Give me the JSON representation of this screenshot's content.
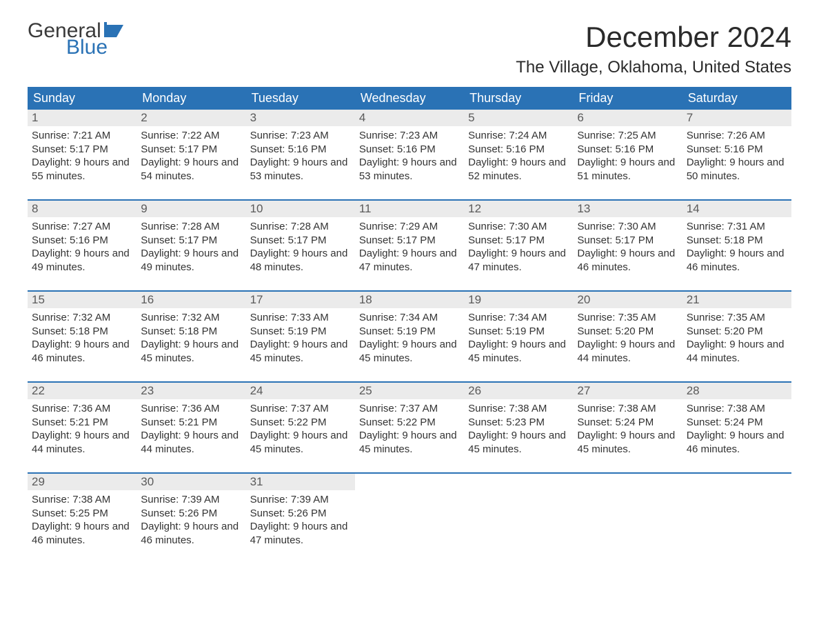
{
  "logo": {
    "word1": "General",
    "word2": "Blue",
    "flag_color": "#2a72b5"
  },
  "title": "December 2024",
  "location": "The Village, Oklahoma, United States",
  "colors": {
    "header_bg": "#2a72b5",
    "header_text": "#ffffff",
    "daynum_bg": "#ebebeb",
    "daynum_text": "#5a5a5a",
    "body_text": "#333333",
    "rule": "#2a72b5",
    "page_bg": "#ffffff"
  },
  "typography": {
    "title_fontsize": 42,
    "location_fontsize": 24,
    "dayheader_fontsize": 18,
    "daynum_fontsize": 17,
    "body_fontsize": 15
  },
  "day_headers": [
    "Sunday",
    "Monday",
    "Tuesday",
    "Wednesday",
    "Thursday",
    "Friday",
    "Saturday"
  ],
  "weeks": [
    [
      {
        "n": "1",
        "sunrise": "7:21 AM",
        "sunset": "5:17 PM",
        "daylight": "9 hours and 55 minutes."
      },
      {
        "n": "2",
        "sunrise": "7:22 AM",
        "sunset": "5:17 PM",
        "daylight": "9 hours and 54 minutes."
      },
      {
        "n": "3",
        "sunrise": "7:23 AM",
        "sunset": "5:16 PM",
        "daylight": "9 hours and 53 minutes."
      },
      {
        "n": "4",
        "sunrise": "7:23 AM",
        "sunset": "5:16 PM",
        "daylight": "9 hours and 53 minutes."
      },
      {
        "n": "5",
        "sunrise": "7:24 AM",
        "sunset": "5:16 PM",
        "daylight": "9 hours and 52 minutes."
      },
      {
        "n": "6",
        "sunrise": "7:25 AM",
        "sunset": "5:16 PM",
        "daylight": "9 hours and 51 minutes."
      },
      {
        "n": "7",
        "sunrise": "7:26 AM",
        "sunset": "5:16 PM",
        "daylight": "9 hours and 50 minutes."
      }
    ],
    [
      {
        "n": "8",
        "sunrise": "7:27 AM",
        "sunset": "5:16 PM",
        "daylight": "9 hours and 49 minutes."
      },
      {
        "n": "9",
        "sunrise": "7:28 AM",
        "sunset": "5:17 PM",
        "daylight": "9 hours and 49 minutes."
      },
      {
        "n": "10",
        "sunrise": "7:28 AM",
        "sunset": "5:17 PM",
        "daylight": "9 hours and 48 minutes."
      },
      {
        "n": "11",
        "sunrise": "7:29 AM",
        "sunset": "5:17 PM",
        "daylight": "9 hours and 47 minutes."
      },
      {
        "n": "12",
        "sunrise": "7:30 AM",
        "sunset": "5:17 PM",
        "daylight": "9 hours and 47 minutes."
      },
      {
        "n": "13",
        "sunrise": "7:30 AM",
        "sunset": "5:17 PM",
        "daylight": "9 hours and 46 minutes."
      },
      {
        "n": "14",
        "sunrise": "7:31 AM",
        "sunset": "5:18 PM",
        "daylight": "9 hours and 46 minutes."
      }
    ],
    [
      {
        "n": "15",
        "sunrise": "7:32 AM",
        "sunset": "5:18 PM",
        "daylight": "9 hours and 46 minutes."
      },
      {
        "n": "16",
        "sunrise": "7:32 AM",
        "sunset": "5:18 PM",
        "daylight": "9 hours and 45 minutes."
      },
      {
        "n": "17",
        "sunrise": "7:33 AM",
        "sunset": "5:19 PM",
        "daylight": "9 hours and 45 minutes."
      },
      {
        "n": "18",
        "sunrise": "7:34 AM",
        "sunset": "5:19 PM",
        "daylight": "9 hours and 45 minutes."
      },
      {
        "n": "19",
        "sunrise": "7:34 AM",
        "sunset": "5:19 PM",
        "daylight": "9 hours and 45 minutes."
      },
      {
        "n": "20",
        "sunrise": "7:35 AM",
        "sunset": "5:20 PM",
        "daylight": "9 hours and 44 minutes."
      },
      {
        "n": "21",
        "sunrise": "7:35 AM",
        "sunset": "5:20 PM",
        "daylight": "9 hours and 44 minutes."
      }
    ],
    [
      {
        "n": "22",
        "sunrise": "7:36 AM",
        "sunset": "5:21 PM",
        "daylight": "9 hours and 44 minutes."
      },
      {
        "n": "23",
        "sunrise": "7:36 AM",
        "sunset": "5:21 PM",
        "daylight": "9 hours and 44 minutes."
      },
      {
        "n": "24",
        "sunrise": "7:37 AM",
        "sunset": "5:22 PM",
        "daylight": "9 hours and 45 minutes."
      },
      {
        "n": "25",
        "sunrise": "7:37 AM",
        "sunset": "5:22 PM",
        "daylight": "9 hours and 45 minutes."
      },
      {
        "n": "26",
        "sunrise": "7:38 AM",
        "sunset": "5:23 PM",
        "daylight": "9 hours and 45 minutes."
      },
      {
        "n": "27",
        "sunrise": "7:38 AM",
        "sunset": "5:24 PM",
        "daylight": "9 hours and 45 minutes."
      },
      {
        "n": "28",
        "sunrise": "7:38 AM",
        "sunset": "5:24 PM",
        "daylight": "9 hours and 46 minutes."
      }
    ],
    [
      {
        "n": "29",
        "sunrise": "7:38 AM",
        "sunset": "5:25 PM",
        "daylight": "9 hours and 46 minutes."
      },
      {
        "n": "30",
        "sunrise": "7:39 AM",
        "sunset": "5:26 PM",
        "daylight": "9 hours and 46 minutes."
      },
      {
        "n": "31",
        "sunrise": "7:39 AM",
        "sunset": "5:26 PM",
        "daylight": "9 hours and 47 minutes."
      },
      null,
      null,
      null,
      null
    ]
  ],
  "labels": {
    "sunrise": "Sunrise:",
    "sunset": "Sunset:",
    "daylight": "Daylight:"
  }
}
